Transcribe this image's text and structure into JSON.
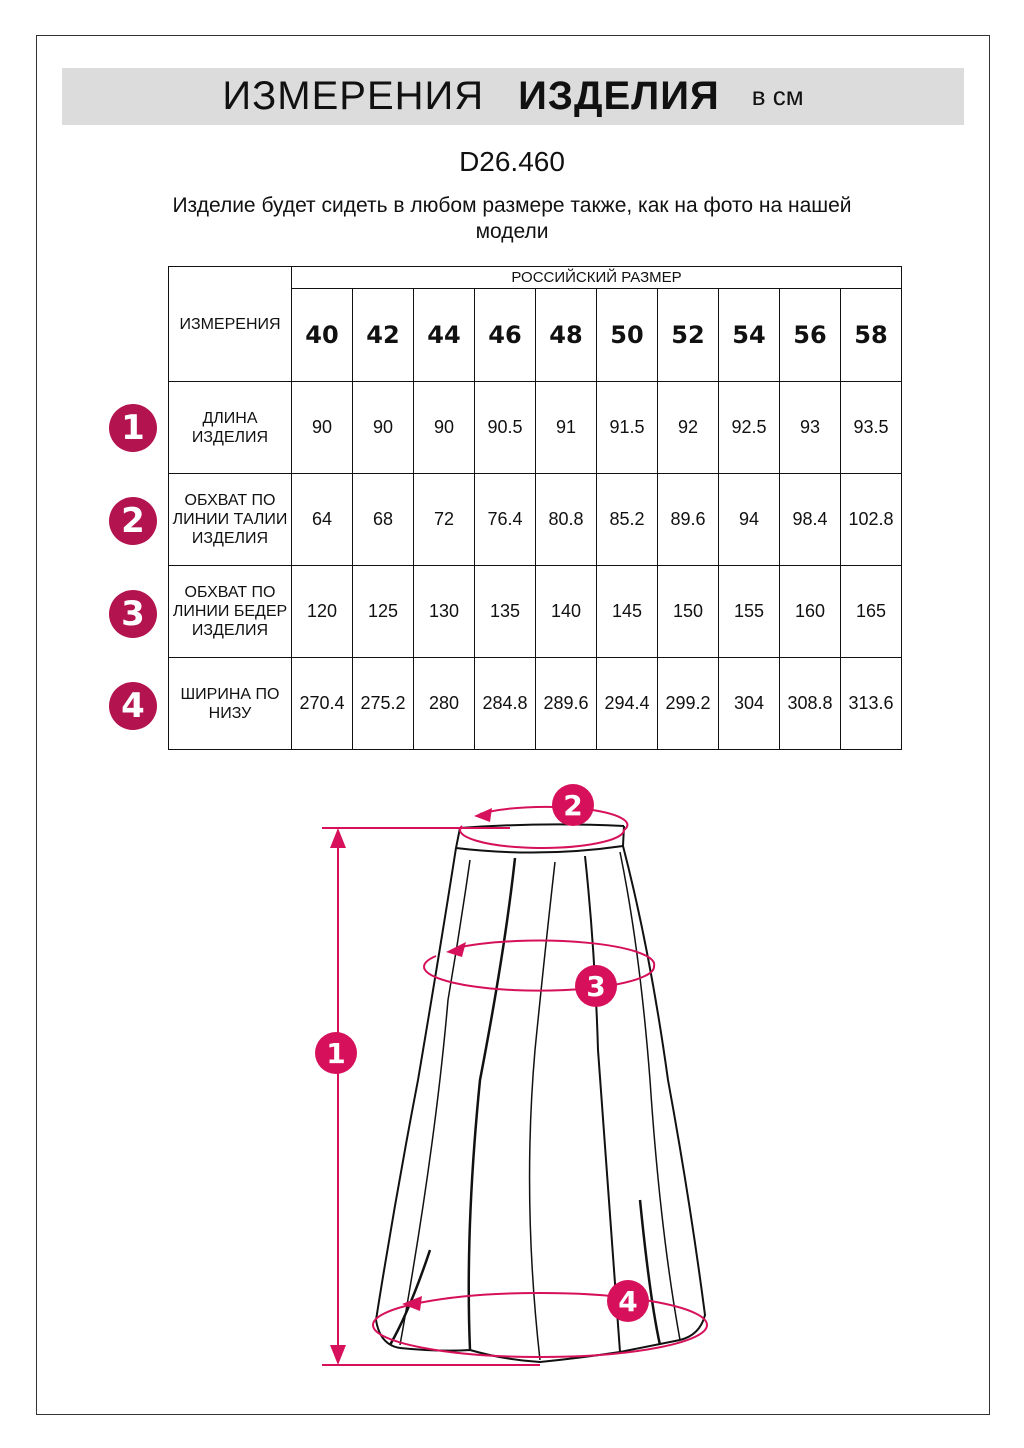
{
  "header": {
    "title_regular": "ИЗМЕРЕНИЯ",
    "title_bold": "ИЗДЕЛИЯ",
    "unit": "в см"
  },
  "article": "D26.460",
  "subtitle": "Изделие будет сидеть в любом размере также, как на фото на нашей модели",
  "table": {
    "corner": "ИЗМЕРЕНИЯ",
    "group_header": "РОССИЙСКИЙ РАЗМЕР",
    "sizes": [
      "40",
      "42",
      "44",
      "46",
      "48",
      "50",
      "52",
      "54",
      "56",
      "58"
    ],
    "rows": [
      {
        "badge": "1",
        "label": "ДЛИНА ИЗДЕЛИЯ",
        "values": [
          "90",
          "90",
          "90",
          "90.5",
          "91",
          "91.5",
          "92",
          "92.5",
          "93",
          "93.5"
        ]
      },
      {
        "badge": "2",
        "label": "ОБХВАТ ПО ЛИНИИ ТАЛИИ ИЗДЕЛИЯ",
        "values": [
          "64",
          "68",
          "72",
          "76.4",
          "80.8",
          "85.2",
          "89.6",
          "94",
          "98.4",
          "102.8"
        ]
      },
      {
        "badge": "3",
        "label": "ОБХВАТ ПО ЛИНИИ БЕДЕР ИЗДЕЛИЯ",
        "values": [
          "120",
          "125",
          "130",
          "135",
          "140",
          "145",
          "150",
          "155",
          "160",
          "165"
        ]
      },
      {
        "badge": "4",
        "label": "ШИРИНА ПО НИЗУ",
        "values": [
          "270.4",
          "275.2",
          "280",
          "284.8",
          "289.6",
          "294.4",
          "299.2",
          "304",
          "308.8",
          "313.6"
        ]
      }
    ]
  },
  "diagram": {
    "markers": [
      "1",
      "2",
      "3",
      "4"
    ]
  },
  "colors": {
    "badge": "#b3134f",
    "measure_line": "#d6105a",
    "band": "#dcdcdc"
  }
}
